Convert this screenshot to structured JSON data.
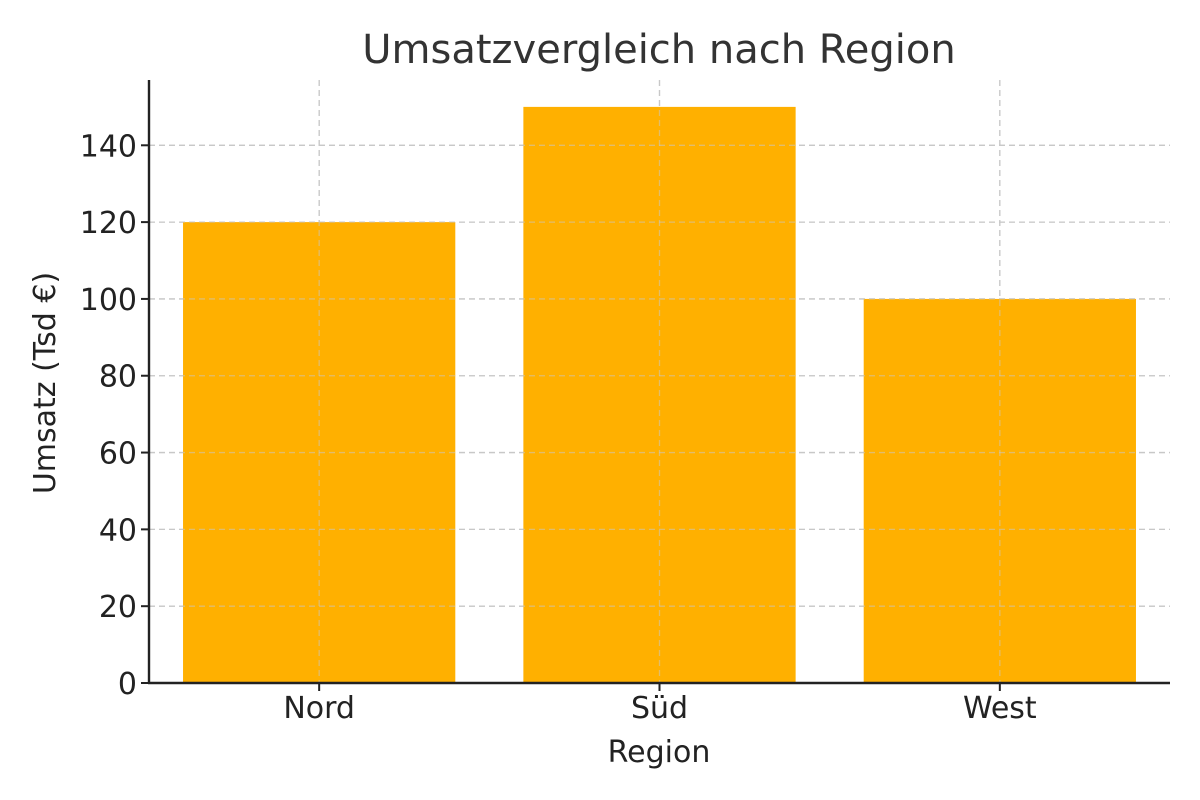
{
  "chart_data": {
    "type": "bar",
    "title": "Umsatzvergleich nach Region",
    "xlabel": "Region",
    "ylabel": "Umsatz (Tsd €)",
    "categories": [
      "Nord",
      "Süd",
      "West"
    ],
    "values": [
      120,
      150,
      100
    ],
    "ylim": [
      0,
      157
    ],
    "yticks": [
      0,
      20,
      40,
      60,
      80,
      100,
      120,
      140
    ],
    "grid": true,
    "bar_color": "#FFB000"
  }
}
